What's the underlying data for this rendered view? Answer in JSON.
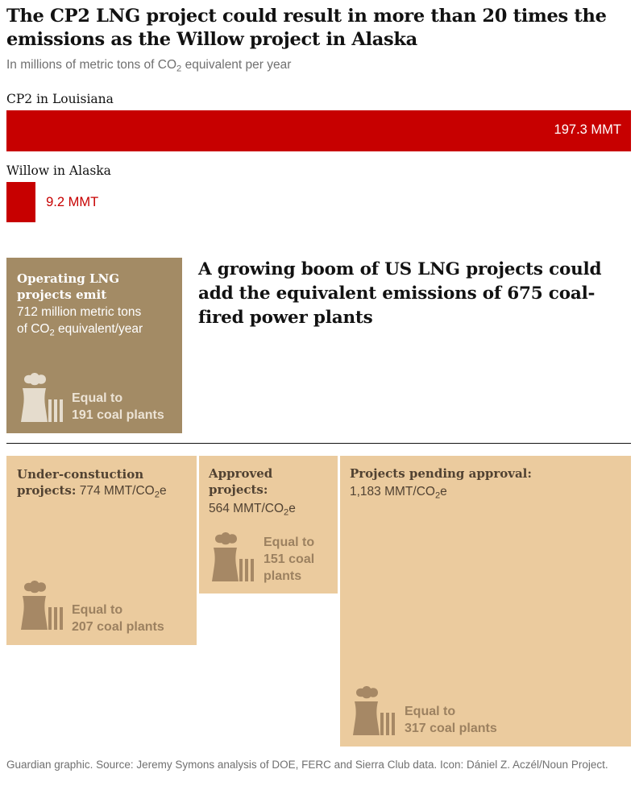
{
  "title": "The CP2 LNG project could result in more than 20 times the emissions as the Willow project in Alaska",
  "subtitle": {
    "before": "In millions of metric tons of CO",
    "sub": "2",
    "after": " equivalent per year"
  },
  "colors": {
    "bar": "#c70000",
    "operating_box": "#a38b65",
    "other_boxes": "#ebcb9e"
  },
  "icons": {
    "plant": "power-plant-icon"
  },
  "chart_data": [
    {
      "type": "bar",
      "orientation": "horizontal",
      "categories": [
        "CP2 in Louisiana",
        "Willow in Alaska"
      ],
      "values": [
        197.3,
        9.2
      ],
      "value_labels": [
        "197.3 MMT",
        "9.2 MMT"
      ],
      "unit": "MMT",
      "xlim": [
        0,
        197.3
      ]
    },
    {
      "type": "treemap",
      "headline": "A growing boom of US LNG projects could add the equivalent emissions of 675 coal-fired power plants",
      "items": [
        {
          "label_1": "Operating LNG",
          "label_2": "projects emit",
          "line_1": "712 million metric tons",
          "line_2_before": "of CO",
          "line_2_sub": "2",
          "line_2_after": " equivalent/year",
          "value": 712,
          "equal_line_1": "Equal to",
          "equal_line_2": "191 coal plants",
          "coal_plants": 191
        },
        {
          "label_1": "Under-constuction",
          "label_2": "projects:",
          "value_text_before": " 774 MMT/CO",
          "value_text_sub": "2",
          "value_text_after": "e",
          "value": 774,
          "equal_line_1": "Equal to",
          "equal_line_2": "207 coal plants",
          "coal_plants": 207
        },
        {
          "label_1": "Approved",
          "label_2": "projects:",
          "value_text_before": "564 MMT/CO",
          "value_text_sub": "2",
          "value_text_after": "e",
          "value": 564,
          "equal_line_1": "Equal to",
          "equal_line_2": "151 coal",
          "equal_line_3": "plants",
          "coal_plants": 151
        },
        {
          "label_1": "Projects pending approval:",
          "value_text_before": "1,183 MMT/CO",
          "value_text_sub": "2",
          "value_text_after": "e",
          "value": 1183,
          "equal_line_1": "Equal to",
          "equal_line_2": "317 coal plants",
          "coal_plants": 317
        }
      ]
    }
  ],
  "footer": "Guardian graphic. Source: Jeremy Symons analysis of DOE, FERC and Sierra Club data. Icon: Dániel Z. Aczél/Noun Project."
}
